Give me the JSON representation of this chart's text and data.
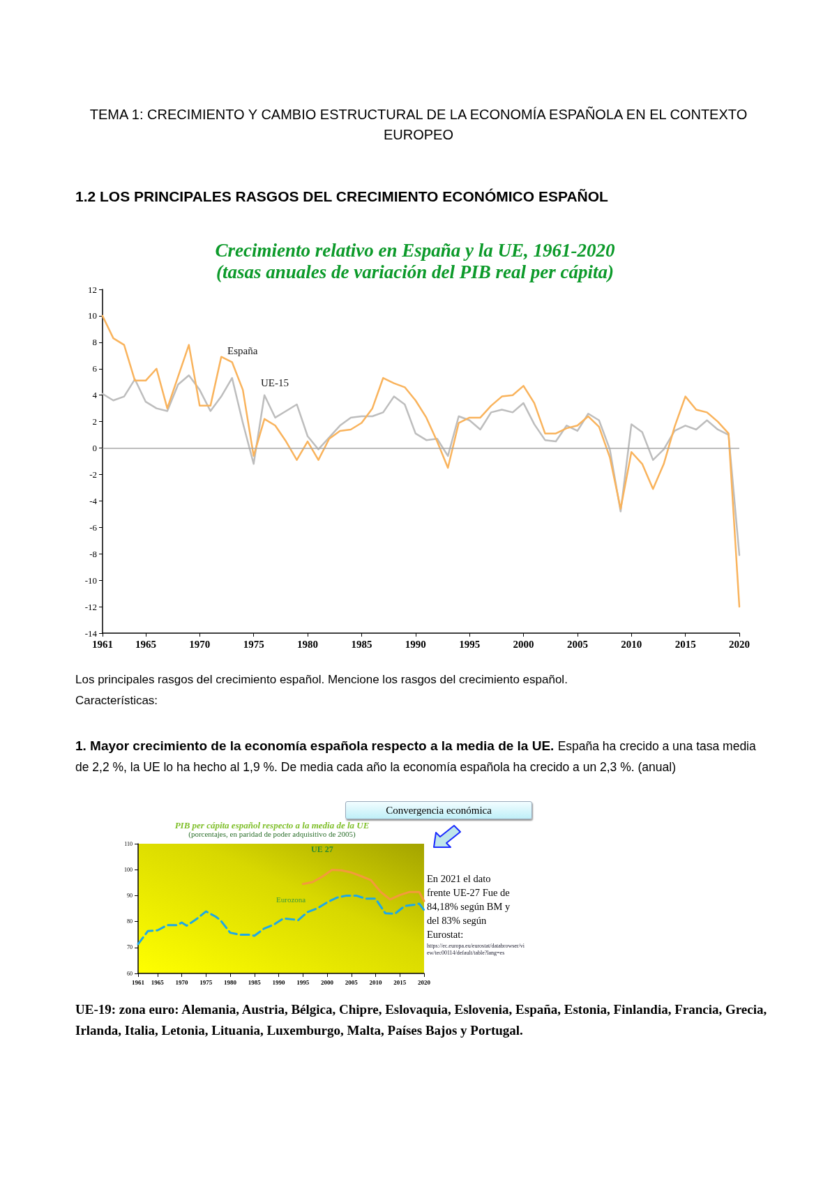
{
  "chart_data": [
    {
      "type": "line",
      "title": "Crecimiento relativo en España y la UE, 1961-2020",
      "subtitle": "(tasas anuales de variación del PIB real per cápita)",
      "annotations": [
        "TEMA 1: CRECIMIENTO Y CAMBIO ESTRUCTURAL DE LA ECONOMÍA ESPAÑOLA EN EL CONTEXTO EUROPEO",
        "1.2 LOS PRINCIPALES RASGOS DEL CRECIMIENTO ECONÓMICO ESPAÑOL",
        "Los principales rasgos del crecimiento español. Mencione los rasgos del crecimiento español.",
        "Características:",
        "1. Mayor crecimiento de la economía española respecto a la media de la UE.",
        "España ha crecido a una tasa media de 2,2 %, la UE lo ha hecho al 1,9 %. De media cada año la economía española ha crecido a un 2,3 %. (anual)",
        "España",
        "UE-15"
      ],
      "x": [
        1961,
        1962,
        1963,
        1964,
        1965,
        1966,
        1967,
        1968,
        1969,
        1970,
        1971,
        1972,
        1973,
        1974,
        1975,
        1976,
        1977,
        1978,
        1979,
        1980,
        1981,
        1982,
        1983,
        1984,
        1985,
        1986,
        1987,
        1988,
        1989,
        1990,
        1991,
        1992,
        1993,
        1994,
        1995,
        1996,
        1997,
        1998,
        1999,
        2000,
        2001,
        2002,
        2003,
        2004,
        2005,
        2006,
        2007,
        2008,
        2009,
        2010,
        2011,
        2012,
        2013,
        2014,
        2015,
        2016,
        2017,
        2018,
        2019,
        2020
      ],
      "series": [
        {
          "color": "#bdbdbd",
          "values": [
            4.1,
            3.6,
            3.9,
            5.2,
            3.5,
            3.0,
            2.8,
            4.8,
            5.5,
            4.4,
            2.8,
            3.9,
            5.3,
            1.9,
            -1.2,
            4.0,
            2.3,
            2.8,
            3.3,
            0.9,
            -0.1,
            0.8,
            1.7,
            2.3,
            2.4,
            2.4,
            2.7,
            3.9,
            3.3,
            1.1,
            0.6,
            0.7,
            -0.6,
            2.4,
            2.1,
            1.4,
            2.7,
            2.9,
            2.7,
            3.4,
            1.8,
            0.6,
            0.5,
            1.7,
            1.3,
            2.6,
            2.1,
            -0.1,
            -4.8,
            1.8,
            1.2,
            -0.9,
            -0.1,
            1.3,
            1.7,
            1.4,
            2.1,
            1.4,
            1.0,
            -8.1
          ]
        },
        {
          "color": "#f9b35c",
          "values": [
            10,
            8.3,
            7.8,
            5.1,
            5.1,
            6.0,
            3.0,
            5.4,
            7.8,
            3.2,
            3.2,
            6.9,
            6.5,
            4.4,
            -0.6,
            2.2,
            1.7,
            0.5,
            -0.9,
            0.5,
            -0.9,
            0.7,
            1.3,
            1.4,
            1.9,
            3.0,
            5.3,
            4.9,
            4.6,
            3.6,
            2.3,
            0.5,
            -1.5,
            1.9,
            2.3,
            2.3,
            3.2,
            3.9,
            4.0,
            4.7,
            3.4,
            1.1,
            1.1,
            1.5,
            1.7,
            2.4,
            1.6,
            -0.7,
            -4.6,
            -0.3,
            -1.2,
            -3.1,
            -1.2,
            1.6,
            3.9,
            2.9,
            2.7,
            2.0,
            1.1,
            -12.0
          ]
        }
      ],
      "xlim": [
        1961,
        2020
      ],
      "xticks": [
        1961,
        1965,
        1970,
        1975,
        1980,
        1985,
        1990,
        1995,
        2000,
        2005,
        2010,
        2015,
        2020
      ],
      "ylim": [
        -14,
        12
      ],
      "yticks": [
        -14,
        -12,
        -10,
        -8,
        -6,
        -4,
        -2,
        0,
        2,
        4,
        6,
        8,
        10,
        12
      ],
      "ref_lines": [
        {
          "axis": "y",
          "value": 0,
          "color": "#a6a6a6"
        }
      ],
      "grid": false,
      "marker": "none",
      "line_style": "solid"
    },
    {
      "type": "line",
      "title": "PIB per cápita español respecto a la media de la UE",
      "subtitle": "(porcentajes, en paridad de poder adquisitivo de 2005)",
      "annotations": [
        "Convergencia económica",
        "En 2021 el dato frente UE-27 Fue de 84,18% según BM y del 83% según Eurostat:",
        "https://ec.europa.eu/eurostat/databrowser/view/tec00114/default/table?lang=es",
        "UE 27",
        "Eurozona",
        "UE-19: zona euro: Alemania, Austria, Bélgica, Chipre, Eslovaquia, Eslovenia, España, Estonia, Finlandia, Francia, Grecia, Irlanda, Italia, Letonia, Lituania, Luxemburgo, Malta, Países Bajos y Portugal."
      ],
      "series": [
        {
          "color": "#f39a3c",
          "line_style": "solid",
          "x": [
            1995,
            1997,
            1999,
            2001,
            2003,
            2005,
            2007,
            2009,
            2011,
            2013,
            2015,
            2017,
            2019,
            2020
          ],
          "values": [
            94.5,
            95.2,
            97.3,
            99.9,
            99.7,
            98.9,
            97.5,
            96.0,
            91.5,
            88.5,
            90.2,
            91.4,
            91.4,
            87.9
          ]
        },
        {
          "color": "#1ea8e6",
          "line_style": "dashed",
          "x": [
            1961,
            1963,
            1965,
            1967,
            1969,
            1970,
            1971,
            1973,
            1975,
            1977,
            1978,
            1980,
            1982,
            1984,
            1985,
            1987,
            1989,
            1991,
            1993,
            1994,
            1996,
            1998,
            2000,
            2002,
            2004,
            2006,
            2008,
            2010,
            2012,
            2014,
            2016,
            2018,
            2019,
            2020
          ],
          "values": [
            71.3,
            76.3,
            76.6,
            78.6,
            78.6,
            79.6,
            78.4,
            80.9,
            83.9,
            81.9,
            80.5,
            75.7,
            74.9,
            74.9,
            74.5,
            77.3,
            78.8,
            81.2,
            80.8,
            80.5,
            83.7,
            85.1,
            87.4,
            89.2,
            90.0,
            90.0,
            88.8,
            88.8,
            83.2,
            83.0,
            86.0,
            86.5,
            86.9,
            84.4
          ]
        }
      ],
      "xlim": [
        1961,
        2020
      ],
      "xticks": [
        1961,
        1965,
        1970,
        1975,
        1980,
        1985,
        1990,
        1995,
        2000,
        2005,
        2010,
        2015,
        2020
      ],
      "ylim": [
        60,
        110
      ],
      "yticks": [
        60,
        70,
        80,
        90,
        100,
        110
      ],
      "grid": false,
      "marker": "none"
    }
  ]
}
